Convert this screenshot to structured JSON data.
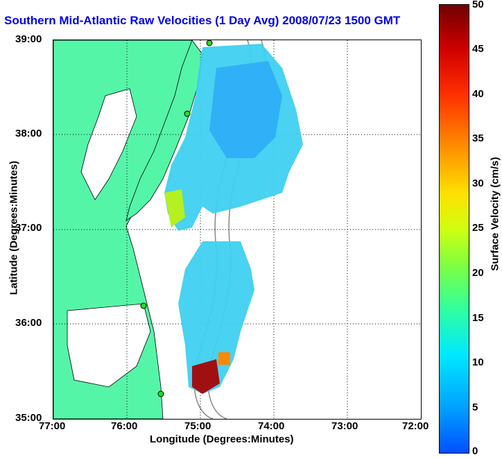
{
  "title": "Southern Mid-Atlantic Raw Velocities (1 Day Avg) 2008/07/23 1500 GMT",
  "x_axis": {
    "label": "Longitude (Degrees:Minutes)",
    "ticks": [
      "77:00",
      "76:00",
      "75:00",
      "74:00",
      "73:00",
      "72:00"
    ]
  },
  "y_axis": {
    "label": "Latitude (Degrees:Minutes)",
    "ticks": [
      "39:00",
      "38:00",
      "37:00",
      "36:00",
      "35:00"
    ]
  },
  "colorbar": {
    "label": "Surface Velocity (cm/s)",
    "ticks": [
      "50",
      "45",
      "40",
      "35",
      "30",
      "25",
      "20",
      "15",
      "10",
      "5",
      "0"
    ],
    "range": [
      0,
      50
    ]
  },
  "colors": {
    "land": "#55f5a8",
    "title": "#0000ee",
    "station": "#22dd22"
  },
  "map_extent": {
    "lon": [
      -77,
      -72
    ],
    "lat": [
      35,
      39
    ]
  }
}
